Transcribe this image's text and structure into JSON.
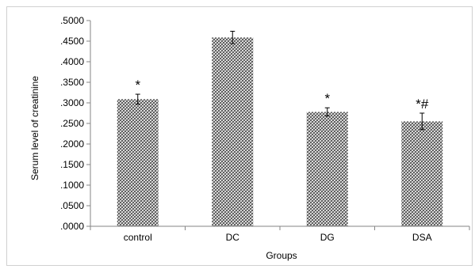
{
  "chart_data": {
    "type": "bar",
    "categories": [
      "control",
      "DC",
      "DG",
      "DSA"
    ],
    "values": [
      0.309,
      0.459,
      0.278,
      0.255
    ],
    "errors": [
      0.012,
      0.015,
      0.01,
      0.02
    ],
    "annotations": [
      "*",
      "",
      "*",
      "*#"
    ],
    "ylim": [
      0,
      0.5
    ],
    "yticks": [
      0,
      0.05,
      0.1,
      0.15,
      0.2,
      0.25,
      0.3,
      0.35,
      0.4,
      0.45,
      0.5
    ],
    "ytick_labels": [
      ".0000",
      ".0500",
      ".1000",
      ".1500",
      ".2000",
      ".2500",
      ".3000",
      ".3500",
      ".4000",
      ".4500",
      ".5000"
    ],
    "xlabel": "Groups",
    "ylabel": "Serum level of creatinine",
    "grid": false,
    "bar_pattern": "crosshatch",
    "colors": {
      "bar_fill": "#555555",
      "axis": "#868686",
      "background": "#ffffff"
    }
  }
}
